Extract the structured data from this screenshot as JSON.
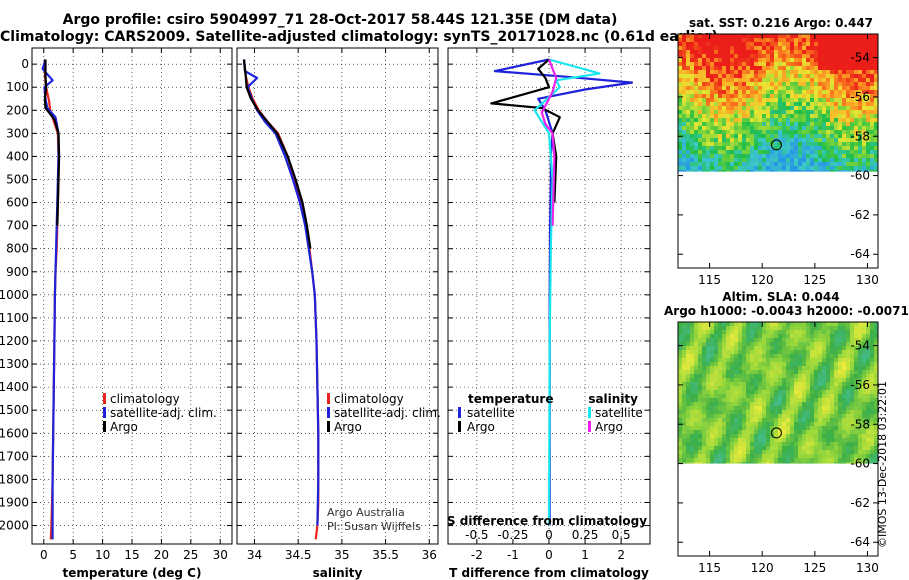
{
  "header": {
    "line1": "Argo profile: csiro 5904997_71 28-Oct-2017 58.44S 121.35E (DM data)",
    "line2": "Climatology: CARS2009. Satellite-adjusted climatology: synTS_20171028.nc (0.61d earlier)"
  },
  "colors": {
    "climatology": "#e8251e",
    "satellite": "#1e22d8",
    "argo": "#000000",
    "satellite_salinity": "#18e6ee",
    "argo_salinity": "#ee22ee"
  },
  "chart_data": [
    {
      "type": "line",
      "id": "temperature",
      "xlabel": "temperature (deg C)",
      "ylabel": "",
      "xlim": [
        -2,
        32
      ],
      "ylim": [
        2080,
        -70
      ],
      "xticks": [
        0,
        5,
        10,
        15,
        20,
        25,
        30
      ],
      "yticks": [
        0,
        100,
        200,
        300,
        400,
        500,
        600,
        700,
        800,
        900,
        1000,
        1100,
        1200,
        1300,
        1400,
        1500,
        1600,
        1700,
        1800,
        1900,
        2000
      ],
      "grid": true,
      "legend": [
        "climatology",
        "satellite-adj. clim.",
        "Argo"
      ],
      "series": [
        {
          "name": "climatology",
          "color_key": "climatology",
          "x": [
            0.2,
            0.2,
            0.4,
            0.9,
            1.1,
            1.6,
            2.4,
            2.5,
            2.5,
            2.4,
            2.3,
            2.2,
            2.0,
            1.9,
            1.8,
            1.7,
            1.6,
            1.5,
            1.4,
            1.3,
            1.2
          ],
          "y": [
            -20,
            50,
            100,
            160,
            200,
            240,
            300,
            400,
            500,
            600,
            700,
            800,
            900,
            1000,
            1200,
            1400,
            1600,
            1800,
            1900,
            2000,
            2060
          ]
        },
        {
          "name": "satellite-adj. clim.",
          "color_key": "satellite",
          "x": [
            0.3,
            -0.2,
            1.5,
            0.1,
            0.3,
            0.6,
            2.0,
            2.5,
            2.5,
            2.4,
            2.3,
            2.2,
            2.1,
            2.0,
            1.9,
            1.8,
            1.7,
            1.6,
            1.5,
            1.5,
            1.5
          ],
          "y": [
            -20,
            20,
            70,
            100,
            150,
            190,
            230,
            300,
            400,
            500,
            600,
            700,
            800,
            900,
            1000,
            1200,
            1400,
            1600,
            1800,
            2000,
            2060
          ]
        },
        {
          "name": "Argo",
          "color_key": "argo",
          "x": [
            0.3,
            0.3,
            0.4,
            0.2,
            0.3,
            1.8,
            2.5,
            2.6,
            2.5,
            2.4,
            2.3
          ],
          "y": [
            -20,
            50,
            100,
            150,
            190,
            240,
            300,
            400,
            500,
            600,
            700
          ]
        }
      ]
    },
    {
      "type": "line",
      "id": "salinity",
      "xlabel": "salinity",
      "ylabel": "",
      "xlim": [
        33.8,
        36.1
      ],
      "ylim": [
        2080,
        -70
      ],
      "xticks": [
        34,
        34.5,
        35,
        35.5,
        36
      ],
      "yticks": [
        0,
        100,
        200,
        300,
        400,
        500,
        600,
        700,
        800,
        900,
        1000,
        1100,
        1200,
        1300,
        1400,
        1500,
        1600,
        1700,
        1800,
        1900,
        2000
      ],
      "grid": true,
      "legend": [
        "climatology",
        "satellite-adj. clim.",
        "Argo"
      ],
      "series": [
        {
          "name": "climatology",
          "color_key": "climatology",
          "x": [
            33.88,
            33.9,
            33.93,
            33.98,
            34.05,
            34.15,
            34.27,
            34.38,
            34.46,
            34.53,
            34.59,
            34.63,
            34.66,
            34.69,
            34.71,
            34.72,
            34.73,
            34.73,
            34.73,
            34.72,
            34.7
          ],
          "y": [
            -20,
            50,
            100,
            150,
            200,
            250,
            300,
            400,
            500,
            600,
            700,
            800,
            900,
            1000,
            1200,
            1400,
            1600,
            1800,
            1900,
            2000,
            2060
          ]
        },
        {
          "name": "satellite-adj. clim.",
          "color_key": "satellite",
          "x": [
            33.88,
            33.89,
            34.03,
            33.92,
            33.97,
            34.03,
            34.12,
            34.24,
            34.35,
            34.44,
            34.52,
            34.58,
            34.62,
            34.66,
            34.69,
            34.71,
            34.72,
            34.73,
            34.73,
            34.72
          ],
          "y": [
            -20,
            30,
            60,
            100,
            150,
            200,
            250,
            300,
            400,
            500,
            600,
            700,
            800,
            900,
            1000,
            1200,
            1400,
            1600,
            1800,
            2000
          ]
        },
        {
          "name": "Argo",
          "color_key": "argo",
          "x": [
            33.88,
            33.9,
            33.91,
            33.96,
            34.04,
            34.15,
            34.26,
            34.38,
            34.47,
            34.55,
            34.6,
            34.64
          ],
          "y": [
            -20,
            50,
            100,
            150,
            200,
            250,
            300,
            400,
            500,
            600,
            700,
            800
          ]
        }
      ],
      "annotation": [
        "Argo Australia",
        "PI: Susan Wijffels"
      ]
    },
    {
      "type": "line",
      "id": "difference",
      "xlabel": "T difference from climatology",
      "secondary_xlabel": "S difference from climatology",
      "ylabel": "",
      "xlim": [
        -2.8,
        2.8
      ],
      "ylim": [
        2080,
        -70
      ],
      "xticks": [
        -2,
        -1,
        0,
        1,
        2
      ],
      "secondary_ticks": [
        "-0.5",
        "-0.25",
        "0",
        "0.25",
        "0.5"
      ],
      "secondary_tick_values": [
        -2,
        -1,
        0,
        1,
        2
      ],
      "yticks": [
        0,
        100,
        200,
        300,
        400,
        500,
        600,
        700,
        800,
        900,
        1000,
        1100,
        1200,
        1300,
        1400,
        1500,
        1600,
        1700,
        1800,
        1900,
        2000
      ],
      "grid": true,
      "legend_titles": [
        "temperature",
        "salinity"
      ],
      "legend_left": [
        "satellite",
        "Argo"
      ],
      "legend_right": [
        "satellite",
        "Argo"
      ],
      "series": [
        {
          "name": "temperature satellite",
          "color_key": "satellite",
          "x": [
            0,
            -1.5,
            0.5,
            2.3,
            1.0,
            -0.3,
            -0.1,
            0.0,
            0.1,
            0.05,
            0.05,
            0.03,
            0.02,
            0.02,
            0.02,
            0.02
          ],
          "y": [
            -20,
            30,
            55,
            80,
            110,
            150,
            200,
            250,
            300,
            400,
            500,
            700,
            1000,
            1400,
            1800,
            2000
          ]
        },
        {
          "name": "temperature Argo",
          "color_key": "argo",
          "x": [
            0,
            -0.3,
            -0.1,
            0.0,
            -1.6,
            -0.2,
            0.3,
            0.1,
            0.2,
            0.15
          ],
          "y": [
            -20,
            20,
            60,
            100,
            170,
            190,
            230,
            300,
            400,
            600
          ]
        },
        {
          "name": "salinity satellite",
          "color_key": "satellite_salinity",
          "x": [
            0.0,
            1.4,
            0.2,
            0.3,
            -0.4,
            -0.2,
            0.0,
            0.1,
            0.05,
            0.02,
            0.0
          ],
          "y": [
            -20,
            40,
            70,
            100,
            200,
            250,
            300,
            500,
            800,
            1200,
            2000
          ]
        },
        {
          "name": "salinity Argo",
          "color_key": "argo_salinity",
          "x": [
            0.0,
            0.2,
            0.1,
            -0.2,
            -0.1,
            0.1,
            0.15,
            0.1
          ],
          "y": [
            -20,
            60,
            120,
            210,
            260,
            300,
            400,
            700
          ]
        }
      ]
    },
    {
      "type": "heatmap",
      "id": "sst_map",
      "title": "sat. SST: 0.216 Argo: 0.447",
      "xlim": [
        112,
        131
      ],
      "ylim": [
        -64.7,
        -52.8
      ],
      "xticks": [
        115,
        120,
        125,
        130
      ],
      "yticks": [
        -54,
        -56,
        -58,
        -60,
        -62,
        -64
      ],
      "marker": {
        "lon": 121.35,
        "lat": -58.44
      }
    },
    {
      "type": "heatmap",
      "id": "sla_map",
      "title": "Altim. SLA: 0.044",
      "subtitle": "Argo h1000: -0.0043 h2000: -0.0071",
      "xlim": [
        112,
        131
      ],
      "ylim": [
        -64.7,
        -52.8
      ],
      "xticks": [
        115,
        120,
        125,
        130
      ],
      "yticks": [
        -54,
        -56,
        -58,
        -60,
        -62,
        -64
      ],
      "marker": {
        "lon": 121.35,
        "lat": -58.44
      }
    }
  ],
  "stamp": "©IMOS 13-Dec-2018 03:22:01"
}
